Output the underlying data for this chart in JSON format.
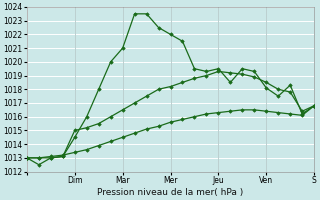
{
  "xlabel": "Pression niveau de la mer( hPa )",
  "bg_color": "#cce8e8",
  "grid_color": "#ffffff",
  "line_color": "#1a6b1a",
  "ylim": [
    1012,
    1024
  ],
  "yticks": [
    1012,
    1013,
    1014,
    1015,
    1016,
    1017,
    1018,
    1019,
    1020,
    1021,
    1022,
    1023,
    1024
  ],
  "x_labels": [
    "",
    "Dim",
    "Mar",
    "Mer",
    "Jeu",
    "Ven",
    "S"
  ],
  "x_ticks": [
    0,
    4,
    8,
    12,
    16,
    20,
    24
  ],
  "lines": [
    [
      1013.0,
      1012.5,
      1013.0,
      1013.1,
      1014.5,
      1016.0,
      1018.0,
      1020.0,
      1021.0,
      1023.5,
      1023.5,
      1022.5,
      1022.0,
      1021.5,
      1019.5,
      1019.3,
      1019.5,
      1018.5,
      1019.5,
      1019.3,
      1018.1,
      1017.5,
      1018.3,
      1016.2,
      1016.8
    ],
    [
      1013.0,
      1013.0,
      1013.0,
      1013.1,
      1015.0,
      1015.2,
      1015.5,
      1016.0,
      1016.5,
      1017.0,
      1017.5,
      1018.0,
      1018.2,
      1018.5,
      1018.8,
      1019.0,
      1019.3,
      1019.2,
      1019.1,
      1018.9,
      1018.5,
      1018.0,
      1017.8,
      1016.4,
      1016.8
    ],
    [
      1013.0,
      1013.0,
      1013.1,
      1013.2,
      1013.4,
      1013.6,
      1013.9,
      1014.2,
      1014.5,
      1014.8,
      1015.1,
      1015.3,
      1015.6,
      1015.8,
      1016.0,
      1016.2,
      1016.3,
      1016.4,
      1016.5,
      1016.5,
      1016.4,
      1016.3,
      1016.2,
      1016.1,
      1016.8
    ]
  ]
}
